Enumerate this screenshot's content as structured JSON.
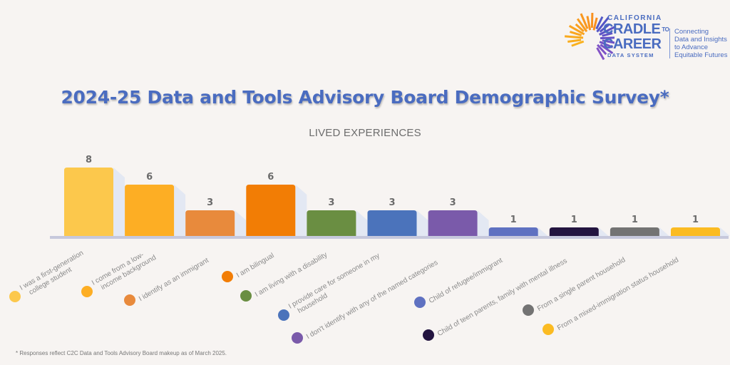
{
  "logo": {
    "line1": "CALIFORNIA",
    "line2": "CRADLE",
    "to": "TO",
    "line3": "CAREER",
    "line4": "DATA SYSTEM",
    "tagline": [
      "Connecting",
      "Data and Insights",
      "to Advance",
      "Equitable Futures"
    ]
  },
  "footnote": "* Responses reflect C2C Data and Tools Advisory Board makeup as of March 2025.",
  "chart_data": {
    "type": "bar",
    "title": "2024-25 Data and Tools Advisory Board Demographic Survey*",
    "subtitle": "LIVED EXPERIENCES",
    "xlabel": "",
    "ylabel": "",
    "ylim": [
      0,
      8
    ],
    "grid": false,
    "legend": "bottom (rotated labels with colored dots)",
    "categories": [
      "I was a first-generation college student",
      "I come from a low-income background",
      "I identify as an immigrant",
      "I am bilingual",
      "I am living with a disability",
      "I provide care for someone in my household",
      "I don't identify with any of the named categories",
      "Child of refugee/immigrant",
      "Child of teen parents, family with mental illness",
      "From a single parent household",
      "From a mixed-immigration status household"
    ],
    "label_lines": [
      [
        "I was a first-generation",
        "college student"
      ],
      [
        "I come from a low-",
        "income background"
      ],
      [
        "I identify as an immigrant"
      ],
      [
        "I am bilingual"
      ],
      [
        "I am living with a disability"
      ],
      [
        "I provide care for someone in my",
        "household"
      ],
      [
        "I don't identify with any of the named categories"
      ],
      [
        "Child of refugee/immigrant"
      ],
      [
        "Child of teen parents, family with mental illness"
      ],
      [
        "From a single parent household"
      ],
      [
        "From a mixed-immigration status household"
      ]
    ],
    "values": [
      8,
      6,
      3,
      6,
      3,
      3,
      3,
      1,
      1,
      1,
      1
    ],
    "data_labels": [
      "8",
      "6",
      "3",
      "6",
      "3",
      "3",
      "3",
      "1",
      "1",
      "1",
      "1"
    ],
    "colors": [
      "#fcc84c",
      "#fdae24",
      "#e88a3c",
      "#f27d05",
      "#6a8e42",
      "#4b73bb",
      "#7a5aaa",
      "#5f71c1",
      "#231440",
      "#737373",
      "#fbbb22"
    ]
  }
}
